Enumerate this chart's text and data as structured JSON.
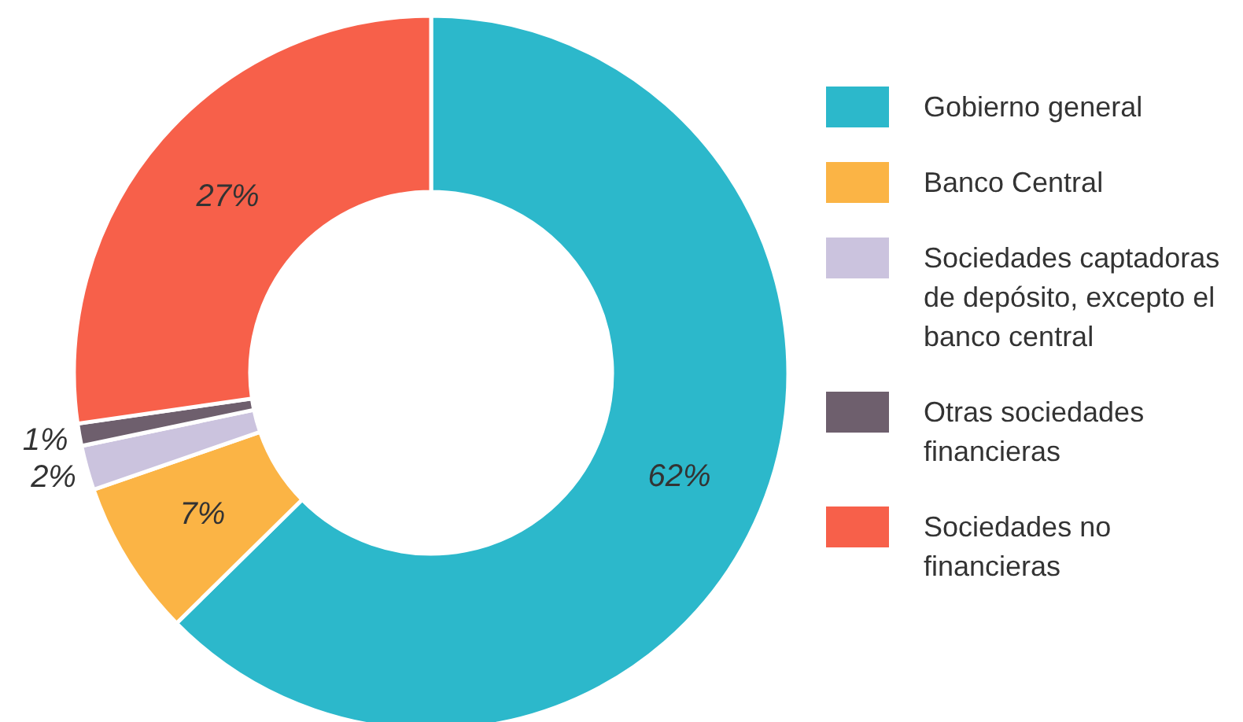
{
  "chart_data": {
    "type": "donut",
    "categories": [
      "Gobierno general",
      "Banco Central",
      "Sociedades captadoras de depósito, excepto el banco central",
      "Otras sociedades financieras",
      "Sociedades no financieras"
    ],
    "values": [
      62,
      7,
      2,
      1,
      27
    ],
    "colors": [
      "#2cb8cb",
      "#fbb445",
      "#cbc3de",
      "#6e5f6d",
      "#f7604a"
    ],
    "value_labels": [
      "62%",
      "7%",
      "2%",
      "1%",
      "27%"
    ],
    "legend": "right"
  }
}
